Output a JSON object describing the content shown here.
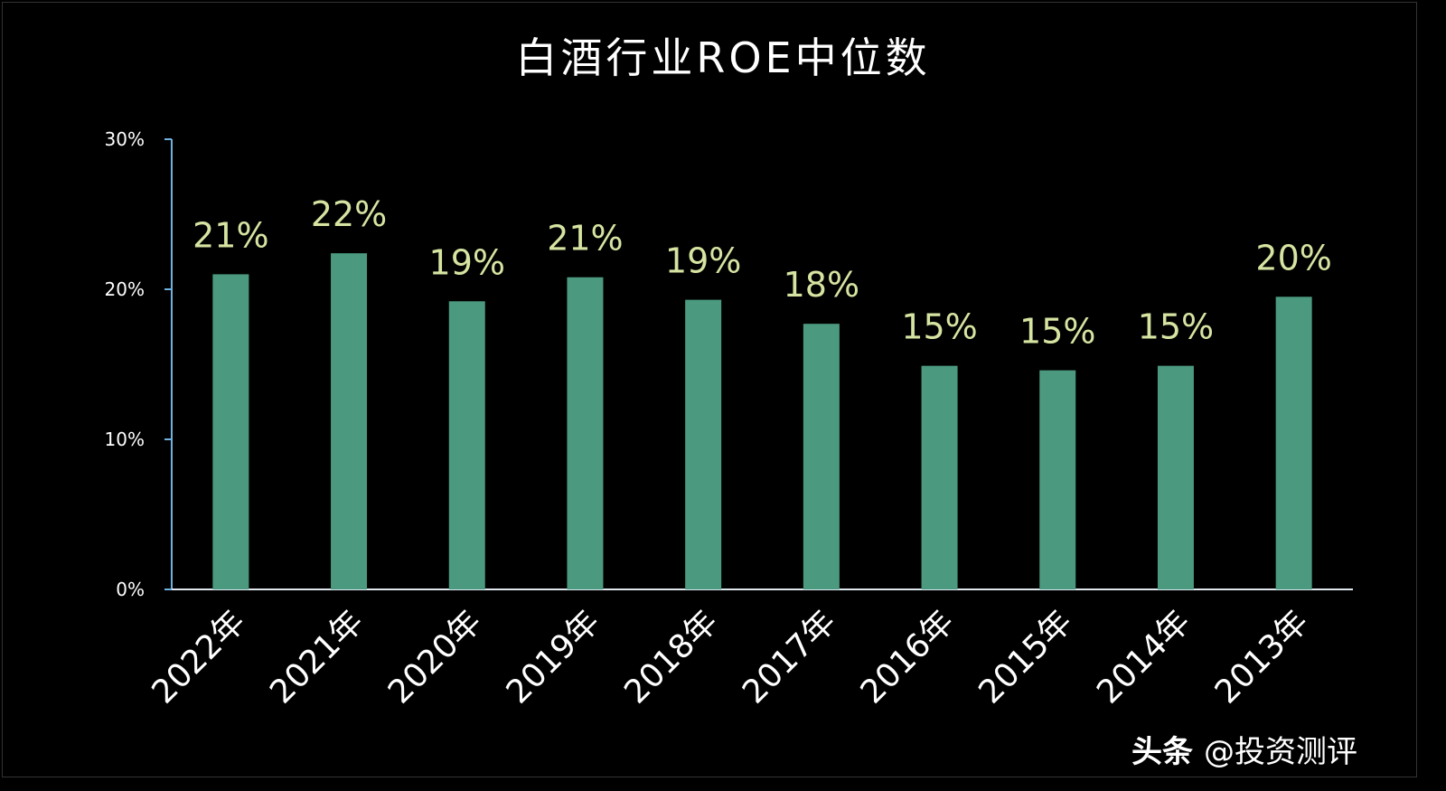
{
  "chart_data": {
    "type": "bar",
    "title": "白酒行业ROE中位数",
    "categories": [
      "2022年",
      "2021年",
      "2020年",
      "2019年",
      "2018年",
      "2017年",
      "2016年",
      "2015年",
      "2014年",
      "2013年"
    ],
    "values": [
      21.0,
      22.4,
      19.2,
      20.8,
      19.3,
      17.7,
      14.9,
      14.6,
      14.9,
      19.5
    ],
    "data_labels": [
      "21%",
      "22%",
      "19%",
      "21%",
      "19%",
      "18%",
      "15%",
      "15%",
      "15%",
      "20%"
    ],
    "y_ticks": [
      "0%",
      "10%",
      "20%",
      "30%"
    ],
    "ylim": [
      0,
      30
    ],
    "xlabel": "",
    "ylabel": "",
    "grid": false,
    "colors": {
      "bar": "#4b9a80",
      "label": "#d6e4a2",
      "axis": "#6fb1df"
    }
  },
  "watermark": {
    "brand": "头条",
    "handle": "@投资测评"
  }
}
